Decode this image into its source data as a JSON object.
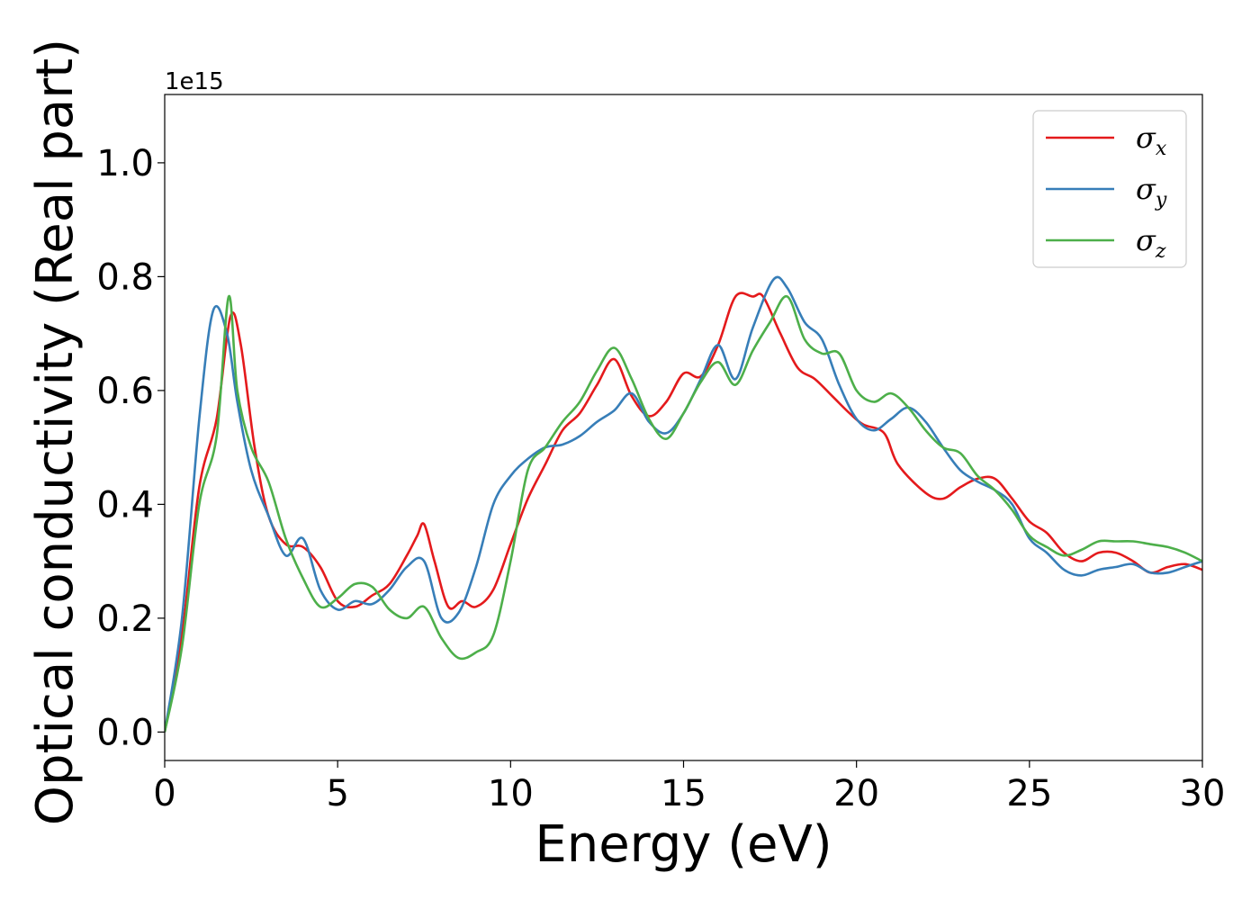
{
  "chart_data": {
    "type": "line",
    "xlabel": "Energy (eV)",
    "ylabel": "Optical conductivity (Real part)",
    "y_offset_label": "1e15",
    "xlim": [
      0,
      30
    ],
    "ylim": [
      -0.05,
      1.12
    ],
    "xticks": [
      0,
      5,
      10,
      15,
      20,
      25,
      30
    ],
    "yticks": [
      0.0,
      0.2,
      0.4,
      0.6,
      0.8,
      1.0
    ],
    "ytick_labels": [
      "0.0",
      "0.2",
      "0.4",
      "0.6",
      "0.8",
      "1.0"
    ],
    "grid": false,
    "legend_position": "top-right",
    "series": [
      {
        "name": "σx",
        "symbol": "σ",
        "subscript": "x",
        "color": "#e41a1c",
        "x": [
          0,
          0.5,
          1,
          1.5,
          1.9,
          2.2,
          2.6,
          3,
          3.5,
          4,
          4.5,
          5,
          5.5,
          6,
          6.5,
          7,
          7.3,
          7.5,
          7.8,
          8.2,
          8.6,
          9,
          9.5,
          10,
          10.5,
          11,
          11.5,
          12,
          12.5,
          13,
          13.5,
          14,
          14.5,
          15,
          15.5,
          16,
          16.5,
          17,
          17.3,
          17.8,
          18.3,
          18.8,
          19.3,
          19.8,
          20.2,
          20.8,
          21.2,
          22,
          22.5,
          23,
          23.5,
          24,
          24.5,
          25,
          25.5,
          26,
          26.5,
          27,
          27.5,
          28,
          28.5,
          29,
          29.5,
          30
        ],
        "y": [
          0.0,
          0.17,
          0.43,
          0.55,
          0.73,
          0.68,
          0.5,
          0.38,
          0.33,
          0.325,
          0.29,
          0.23,
          0.22,
          0.24,
          0.26,
          0.31,
          0.345,
          0.365,
          0.3,
          0.22,
          0.23,
          0.22,
          0.25,
          0.33,
          0.41,
          0.47,
          0.53,
          0.56,
          0.61,
          0.655,
          0.59,
          0.555,
          0.58,
          0.63,
          0.625,
          0.68,
          0.765,
          0.765,
          0.765,
          0.7,
          0.64,
          0.62,
          0.59,
          0.56,
          0.54,
          0.525,
          0.47,
          0.42,
          0.41,
          0.43,
          0.445,
          0.445,
          0.41,
          0.37,
          0.35,
          0.315,
          0.3,
          0.315,
          0.315,
          0.3,
          0.28,
          0.29,
          0.295,
          0.285
        ]
      },
      {
        "name": "σy",
        "symbol": "σ",
        "subscript": "y",
        "color": "#377eb8",
        "x": [
          0,
          0.5,
          1,
          1.4,
          1.8,
          2.1,
          2.5,
          3,
          3.5,
          4,
          4.5,
          5,
          5.5,
          6,
          6.5,
          7,
          7.5,
          8,
          8.5,
          9,
          9.5,
          10,
          10.5,
          11,
          11.5,
          12,
          12.5,
          13,
          13.5,
          14,
          14.5,
          15,
          15.5,
          16,
          16.5,
          17,
          17.6,
          18,
          18.5,
          19,
          19.5,
          20,
          20.5,
          21,
          21.5,
          22,
          22.5,
          23,
          23.5,
          24,
          24.5,
          25,
          25.5,
          26,
          26.5,
          27,
          27.5,
          28,
          28.5,
          29,
          29.5,
          30
        ],
        "y": [
          0.0,
          0.2,
          0.55,
          0.74,
          0.7,
          0.58,
          0.46,
          0.38,
          0.31,
          0.34,
          0.25,
          0.215,
          0.23,
          0.225,
          0.25,
          0.29,
          0.3,
          0.2,
          0.21,
          0.29,
          0.4,
          0.45,
          0.48,
          0.5,
          0.505,
          0.52,
          0.545,
          0.565,
          0.595,
          0.545,
          0.525,
          0.56,
          0.62,
          0.68,
          0.62,
          0.71,
          0.795,
          0.78,
          0.72,
          0.69,
          0.61,
          0.55,
          0.53,
          0.55,
          0.57,
          0.545,
          0.5,
          0.46,
          0.44,
          0.425,
          0.4,
          0.34,
          0.315,
          0.285,
          0.275,
          0.285,
          0.29,
          0.295,
          0.28,
          0.28,
          0.29,
          0.3
        ]
      },
      {
        "name": "σz",
        "symbol": "σ",
        "subscript": "z",
        "color": "#4daf4a",
        "x": [
          0,
          0.5,
          1,
          1.5,
          1.85,
          2.1,
          2.5,
          3,
          3.5,
          4,
          4.5,
          5,
          5.5,
          6,
          6.5,
          7,
          7.5,
          8,
          8.5,
          9,
          9.5,
          10,
          10.5,
          11,
          11.5,
          12,
          12.5,
          13,
          13.5,
          14,
          14.5,
          15,
          15.5,
          16,
          16.5,
          17,
          17.5,
          18,
          18.5,
          19,
          19.5,
          20,
          20.5,
          21,
          21.5,
          22,
          22.5,
          23,
          23.5,
          24,
          24.5,
          25,
          25.5,
          26,
          26.5,
          27,
          27.5,
          28,
          28.5,
          29,
          29.5,
          30
        ],
        "y": [
          0.0,
          0.15,
          0.4,
          0.52,
          0.765,
          0.6,
          0.5,
          0.44,
          0.34,
          0.27,
          0.22,
          0.235,
          0.26,
          0.255,
          0.215,
          0.2,
          0.22,
          0.165,
          0.13,
          0.14,
          0.17,
          0.3,
          0.46,
          0.5,
          0.545,
          0.58,
          0.635,
          0.675,
          0.62,
          0.55,
          0.515,
          0.56,
          0.615,
          0.65,
          0.61,
          0.67,
          0.72,
          0.765,
          0.69,
          0.665,
          0.665,
          0.6,
          0.58,
          0.595,
          0.57,
          0.53,
          0.5,
          0.49,
          0.45,
          0.425,
          0.39,
          0.345,
          0.325,
          0.31,
          0.32,
          0.335,
          0.335,
          0.335,
          0.33,
          0.325,
          0.315,
          0.3
        ]
      }
    ]
  }
}
